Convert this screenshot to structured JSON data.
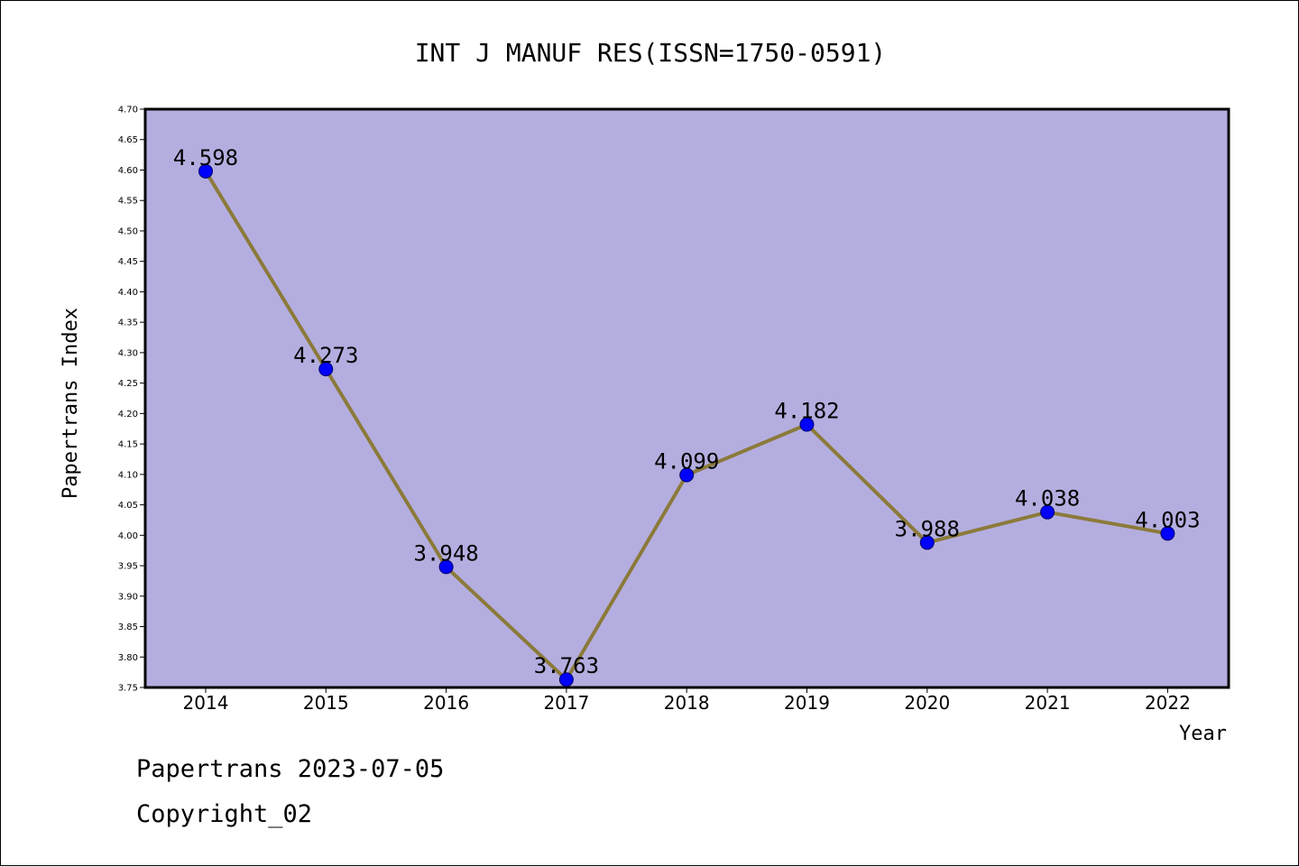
{
  "chart_data": {
    "type": "line",
    "title": "INT J MANUF RES(ISSN=1750-0591)",
    "xlabel": "Year",
    "ylabel": "Papertrans Index",
    "categories": [
      "2014",
      "2015",
      "2016",
      "2017",
      "2018",
      "2019",
      "2020",
      "2021",
      "2022"
    ],
    "series": [
      {
        "values": [
          4.598,
          4.273,
          3.948,
          3.763,
          4.099,
          4.182,
          3.988,
          4.038,
          4.003
        ]
      }
    ],
    "data_labels": [
      "4.598",
      "4.273",
      "3.948",
      "3.763",
      "4.099",
      "4.182",
      "3.988",
      "4.038",
      "4.003"
    ],
    "ylim": [
      3.75,
      4.7
    ],
    "yticks": [
      "3.75",
      "3.80",
      "3.85",
      "3.90",
      "3.95",
      "4.00",
      "4.05",
      "4.10",
      "4.15",
      "4.20",
      "4.25",
      "4.30",
      "4.35",
      "4.40",
      "4.45",
      "4.50",
      "4.55",
      "4.60",
      "4.65",
      "4.70"
    ],
    "grid": false,
    "colors": {
      "plot_background": "#b4aee0",
      "line": "#8b7a3a",
      "marker": "#0000ff",
      "marker_edge": "#000066"
    }
  },
  "footer": {
    "date_line": "Papertrans 2023-07-05",
    "copyright": "Copyright_02"
  }
}
